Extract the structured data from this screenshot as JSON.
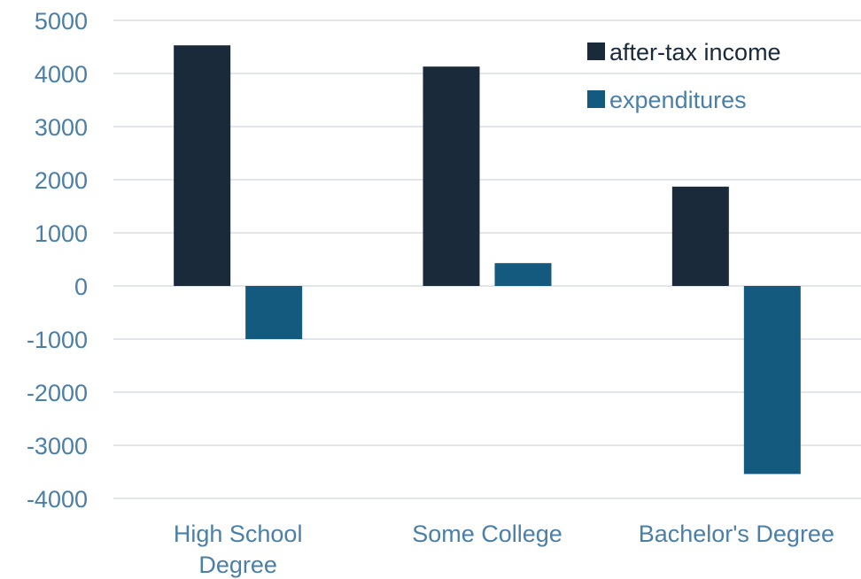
{
  "chart_data": {
    "type": "bar",
    "categories": [
      [
        "High School",
        "Degree"
      ],
      [
        "Some College"
      ],
      [
        "Bachelor's Degree"
      ]
    ],
    "series": [
      {
        "name": "after-tax income",
        "values": [
          4530,
          4130,
          1870
        ],
        "color": "#1b2a3b"
      },
      {
        "name": "expenditures",
        "values": [
          -1000,
          430,
          -3540
        ],
        "color": "#135a7e"
      }
    ],
    "ylim": [
      -4000,
      5000
    ],
    "yticks": [
      5000,
      4000,
      3000,
      2000,
      1000,
      0,
      -1000,
      -2000,
      -3000,
      -4000
    ],
    "grid": true,
    "legend_position": "top-right",
    "text_color": "#4a7fa8",
    "gridline_color": "#d9dee3",
    "title": "",
    "xlabel": "",
    "ylabel": ""
  }
}
